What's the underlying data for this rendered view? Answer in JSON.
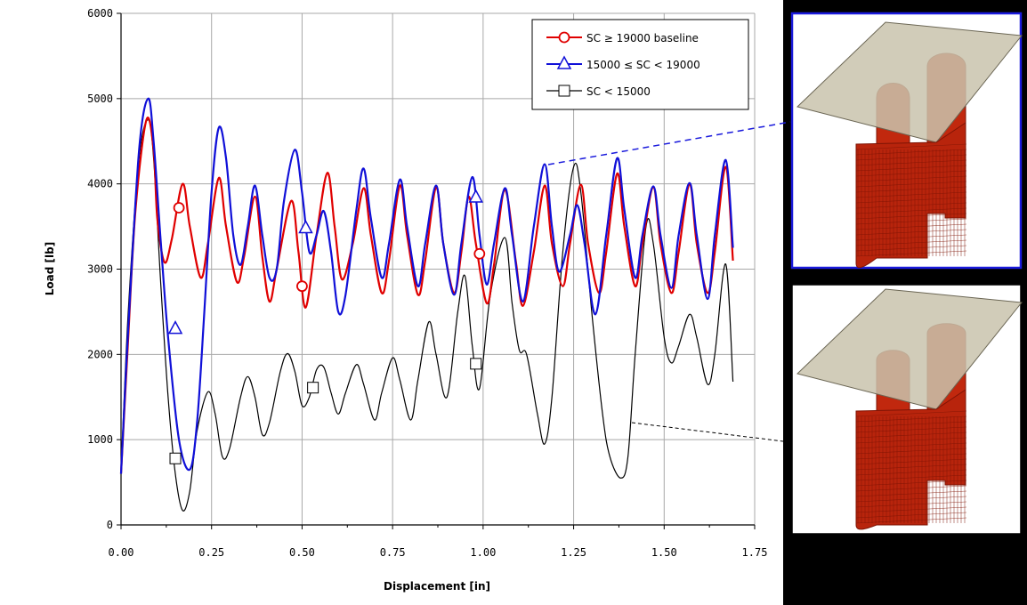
{
  "colors": {
    "red": "#e00000",
    "blue": "#1010d8",
    "black": "#000000",
    "grid": "#a8a8a8",
    "shell": "#c1280e",
    "shell_dark": "#7e1405",
    "plate": "#c9c3ad",
    "upper_inset_border": "#1a1adc",
    "lower_inset_border": "#000000"
  },
  "icons": [
    "buckled-shell-model-icon",
    "crushed-shell-model-icon"
  ],
  "chart_data": {
    "type": "line",
    "title": "",
    "xlabel": "Displacement [in]",
    "ylabel": "Load [lb]",
    "xlim": [
      0,
      1.75
    ],
    "ylim": [
      0,
      6000
    ],
    "x_ticks": [
      "0.00",
      "0.25",
      "0.50",
      "0.75",
      "1.00",
      "1.25",
      "1.50",
      "1.75"
    ],
    "y_ticks": [
      "0",
      "1000",
      "2000",
      "3000",
      "4000",
      "5000",
      "6000"
    ],
    "grid": true,
    "legend_position": "top-right",
    "series": [
      {
        "name": "SC ≥ 19000 baseline",
        "color": "red",
        "marker": "circle",
        "markers": [
          [
            0.16,
            3720
          ],
          [
            0.5,
            2800
          ],
          [
            0.99,
            3180
          ]
        ],
        "points": [
          [
            0.0,
            600
          ],
          [
            0.02,
            2200
          ],
          [
            0.04,
            3700
          ],
          [
            0.07,
            4750
          ],
          [
            0.09,
            4400
          ],
          [
            0.1,
            3600
          ],
          [
            0.12,
            3080
          ],
          [
            0.14,
            3350
          ],
          [
            0.17,
            4000
          ],
          [
            0.19,
            3500
          ],
          [
            0.22,
            2900
          ],
          [
            0.24,
            3300
          ],
          [
            0.27,
            4070
          ],
          [
            0.29,
            3500
          ],
          [
            0.32,
            2850
          ],
          [
            0.34,
            3150
          ],
          [
            0.37,
            3850
          ],
          [
            0.39,
            3150
          ],
          [
            0.41,
            2620
          ],
          [
            0.43,
            3000
          ],
          [
            0.47,
            3800
          ],
          [
            0.49,
            3200
          ],
          [
            0.51,
            2550
          ],
          [
            0.54,
            3400
          ],
          [
            0.57,
            4130
          ],
          [
            0.59,
            3500
          ],
          [
            0.61,
            2880
          ],
          [
            0.64,
            3300
          ],
          [
            0.67,
            3950
          ],
          [
            0.69,
            3400
          ],
          [
            0.72,
            2720
          ],
          [
            0.74,
            3100
          ],
          [
            0.77,
            3980
          ],
          [
            0.79,
            3400
          ],
          [
            0.82,
            2700
          ],
          [
            0.84,
            3100
          ],
          [
            0.87,
            3960
          ],
          [
            0.89,
            3300
          ],
          [
            0.92,
            2720
          ],
          [
            0.94,
            3200
          ],
          [
            0.96,
            3850
          ],
          [
            0.98,
            3300
          ],
          [
            1.01,
            2600
          ],
          [
            1.03,
            3050
          ],
          [
            1.06,
            3930
          ],
          [
            1.09,
            3100
          ],
          [
            1.11,
            2570
          ],
          [
            1.14,
            3200
          ],
          [
            1.17,
            3980
          ],
          [
            1.19,
            3300
          ],
          [
            1.22,
            2800
          ],
          [
            1.24,
            3300
          ],
          [
            1.27,
            3990
          ],
          [
            1.29,
            3300
          ],
          [
            1.32,
            2720
          ],
          [
            1.34,
            3200
          ],
          [
            1.37,
            4120
          ],
          [
            1.39,
            3500
          ],
          [
            1.42,
            2800
          ],
          [
            1.44,
            3300
          ],
          [
            1.47,
            3960
          ],
          [
            1.49,
            3300
          ],
          [
            1.52,
            2720
          ],
          [
            1.54,
            3200
          ],
          [
            1.57,
            4000
          ],
          [
            1.59,
            3300
          ],
          [
            1.62,
            2720
          ],
          [
            1.64,
            3200
          ],
          [
            1.67,
            4200
          ],
          [
            1.69,
            3100
          ]
        ]
      },
      {
        "name": "15000 ≤ SC < 19000",
        "color": "blue",
        "marker": "triangle",
        "markers": [
          [
            0.15,
            2300
          ],
          [
            0.51,
            3480
          ],
          [
            0.98,
            3840
          ]
        ],
        "points": [
          [
            0.0,
            600
          ],
          [
            0.02,
            2300
          ],
          [
            0.05,
            4400
          ],
          [
            0.075,
            5000
          ],
          [
            0.09,
            4500
          ],
          [
            0.11,
            3300
          ],
          [
            0.13,
            2200
          ],
          [
            0.16,
            1000
          ],
          [
            0.19,
            650
          ],
          [
            0.21,
            1200
          ],
          [
            0.23,
            2500
          ],
          [
            0.25,
            3900
          ],
          [
            0.27,
            4660
          ],
          [
            0.29,
            4300
          ],
          [
            0.31,
            3400
          ],
          [
            0.33,
            3050
          ],
          [
            0.35,
            3500
          ],
          [
            0.37,
            3980
          ],
          [
            0.39,
            3400
          ],
          [
            0.41,
            2900
          ],
          [
            0.43,
            3000
          ],
          [
            0.45,
            3800
          ],
          [
            0.48,
            4400
          ],
          [
            0.5,
            3900
          ],
          [
            0.52,
            3200
          ],
          [
            0.54,
            3400
          ],
          [
            0.56,
            3680
          ],
          [
            0.58,
            3200
          ],
          [
            0.6,
            2500
          ],
          [
            0.62,
            2700
          ],
          [
            0.65,
            3700
          ],
          [
            0.67,
            4180
          ],
          [
            0.69,
            3600
          ],
          [
            0.72,
            2900
          ],
          [
            0.74,
            3300
          ],
          [
            0.77,
            4050
          ],
          [
            0.79,
            3500
          ],
          [
            0.82,
            2800
          ],
          [
            0.84,
            3300
          ],
          [
            0.87,
            3980
          ],
          [
            0.89,
            3300
          ],
          [
            0.92,
            2700
          ],
          [
            0.94,
            3300
          ],
          [
            0.97,
            4080
          ],
          [
            0.99,
            3400
          ],
          [
            1.01,
            2820
          ],
          [
            1.03,
            3300
          ],
          [
            1.06,
            3950
          ],
          [
            1.08,
            3400
          ],
          [
            1.11,
            2620
          ],
          [
            1.14,
            3500
          ],
          [
            1.17,
            4230
          ],
          [
            1.19,
            3500
          ],
          [
            1.21,
            2970
          ],
          [
            1.24,
            3400
          ],
          [
            1.26,
            3750
          ],
          [
            1.28,
            3300
          ],
          [
            1.31,
            2470
          ],
          [
            1.34,
            3400
          ],
          [
            1.37,
            4300
          ],
          [
            1.39,
            3700
          ],
          [
            1.42,
            2900
          ],
          [
            1.44,
            3400
          ],
          [
            1.47,
            3970
          ],
          [
            1.49,
            3400
          ],
          [
            1.52,
            2780
          ],
          [
            1.54,
            3400
          ],
          [
            1.57,
            4010
          ],
          [
            1.59,
            3400
          ],
          [
            1.62,
            2650
          ],
          [
            1.64,
            3400
          ],
          [
            1.67,
            4280
          ],
          [
            1.69,
            3250
          ]
        ]
      },
      {
        "name": "SC < 15000",
        "color": "black",
        "marker": "square",
        "markers": [
          [
            0.15,
            780
          ],
          [
            0.53,
            1610
          ],
          [
            0.98,
            1890
          ]
        ],
        "points": [
          [
            0.0,
            600
          ],
          [
            0.02,
            2500
          ],
          [
            0.05,
            4300
          ],
          [
            0.075,
            4750
          ],
          [
            0.09,
            4300
          ],
          [
            0.11,
            2800
          ],
          [
            0.13,
            1500
          ],
          [
            0.15,
            600
          ],
          [
            0.17,
            170
          ],
          [
            0.19,
            400
          ],
          [
            0.21,
            1100
          ],
          [
            0.24,
            1560
          ],
          [
            0.26,
            1300
          ],
          [
            0.28,
            800
          ],
          [
            0.3,
            900
          ],
          [
            0.33,
            1500
          ],
          [
            0.35,
            1740
          ],
          [
            0.37,
            1500
          ],
          [
            0.39,
            1060
          ],
          [
            0.41,
            1200
          ],
          [
            0.44,
            1800
          ],
          [
            0.46,
            2010
          ],
          [
            0.48,
            1800
          ],
          [
            0.5,
            1400
          ],
          [
            0.52,
            1500
          ],
          [
            0.54,
            1820
          ],
          [
            0.56,
            1850
          ],
          [
            0.58,
            1550
          ],
          [
            0.6,
            1300
          ],
          [
            0.62,
            1550
          ],
          [
            0.65,
            1880
          ],
          [
            0.67,
            1650
          ],
          [
            0.7,
            1230
          ],
          [
            0.72,
            1550
          ],
          [
            0.75,
            1960
          ],
          [
            0.77,
            1700
          ],
          [
            0.8,
            1230
          ],
          [
            0.82,
            1700
          ],
          [
            0.85,
            2380
          ],
          [
            0.87,
            2000
          ],
          [
            0.9,
            1500
          ],
          [
            0.93,
            2500
          ],
          [
            0.95,
            2920
          ],
          [
            0.97,
            2100
          ],
          [
            0.99,
            1600
          ],
          [
            1.02,
            2700
          ],
          [
            1.06,
            3370
          ],
          [
            1.08,
            2600
          ],
          [
            1.1,
            2050
          ],
          [
            1.12,
            2000
          ],
          [
            1.15,
            1300
          ],
          [
            1.17,
            950
          ],
          [
            1.19,
            1500
          ],
          [
            1.22,
            3200
          ],
          [
            1.25,
            4200
          ],
          [
            1.27,
            3900
          ],
          [
            1.3,
            2500
          ],
          [
            1.33,
            1300
          ],
          [
            1.35,
            800
          ],
          [
            1.38,
            550
          ],
          [
            1.4,
            800
          ],
          [
            1.42,
            2000
          ],
          [
            1.45,
            3500
          ],
          [
            1.47,
            3300
          ],
          [
            1.5,
            2200
          ],
          [
            1.52,
            1900
          ],
          [
            1.54,
            2100
          ],
          [
            1.57,
            2470
          ],
          [
            1.59,
            2200
          ],
          [
            1.62,
            1650
          ],
          [
            1.64,
            2000
          ],
          [
            1.67,
            3060
          ],
          [
            1.69,
            1680
          ]
        ]
      }
    ]
  }
}
